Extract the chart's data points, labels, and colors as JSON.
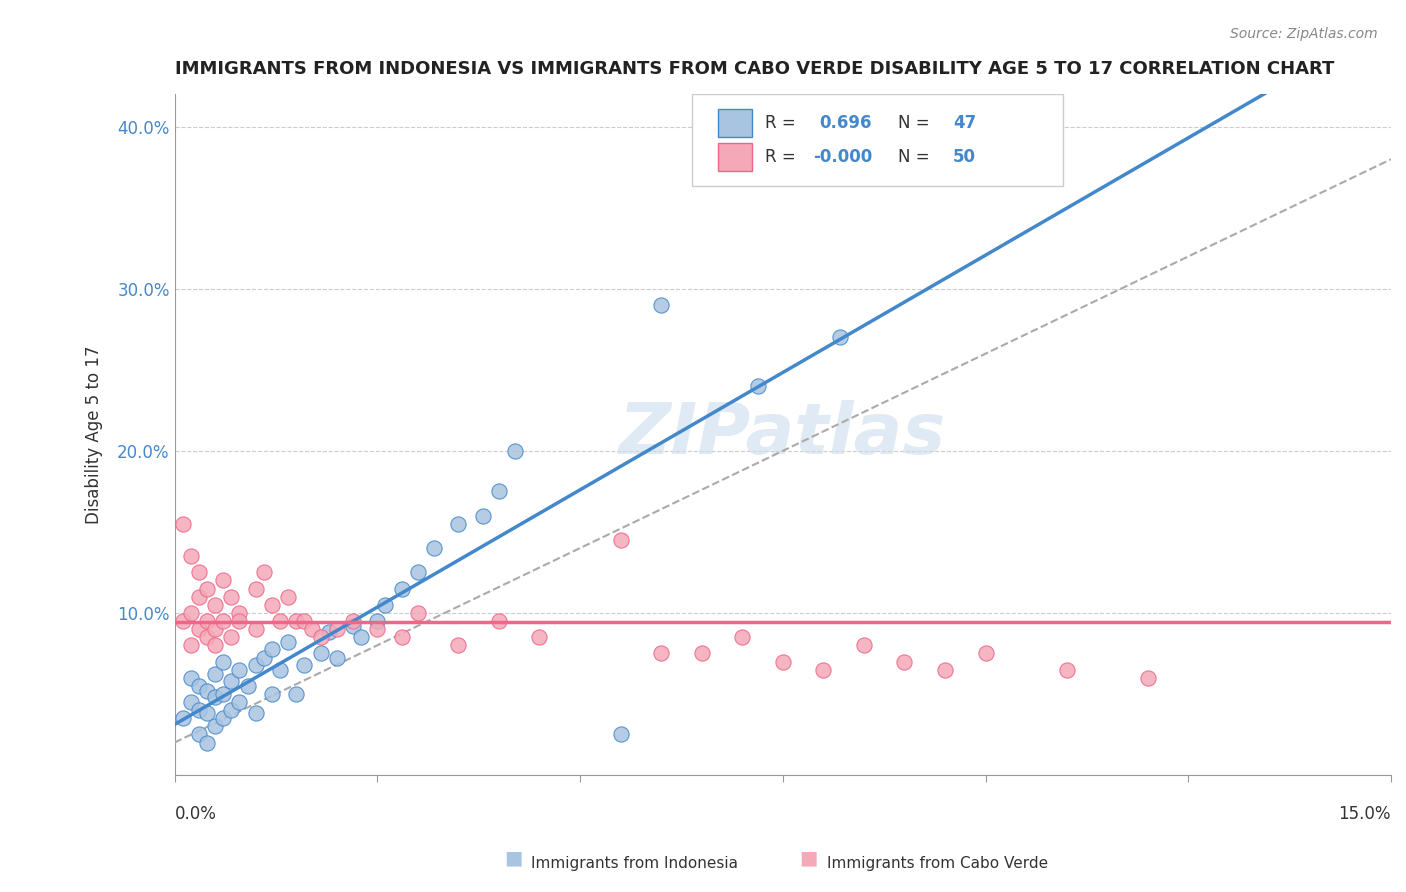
{
  "title": "IMMIGRANTS FROM INDONESIA VS IMMIGRANTS FROM CABO VERDE DISABILITY AGE 5 TO 17 CORRELATION CHART",
  "source": "Source: ZipAtlas.com",
  "ylabel": "Disability Age 5 to 17",
  "xlim": [
    0.0,
    0.15
  ],
  "ylim": [
    0.0,
    0.42
  ],
  "yticks": [
    0.0,
    0.1,
    0.2,
    0.3,
    0.4
  ],
  "ytick_labels": [
    "",
    "10.0%",
    "20.0%",
    "30.0%",
    "40.0%"
  ],
  "color_blue": "#a8c4e0",
  "color_pink": "#f4a8b8",
  "line_blue": "#4488cc",
  "line_pink": "#ee6688",
  "line_dashed": "#aaaaaa",
  "watermark": "ZIPatlas",
  "blue_x": [
    0.001,
    0.002,
    0.002,
    0.003,
    0.003,
    0.003,
    0.004,
    0.004,
    0.004,
    0.005,
    0.005,
    0.005,
    0.006,
    0.006,
    0.006,
    0.007,
    0.007,
    0.008,
    0.008,
    0.009,
    0.01,
    0.01,
    0.011,
    0.012,
    0.012,
    0.013,
    0.014,
    0.015,
    0.016,
    0.018,
    0.019,
    0.02,
    0.022,
    0.023,
    0.025,
    0.026,
    0.028,
    0.03,
    0.032,
    0.035,
    0.038,
    0.04,
    0.042,
    0.055,
    0.06,
    0.072,
    0.082
  ],
  "blue_y": [
    0.035,
    0.045,
    0.06,
    0.025,
    0.04,
    0.055,
    0.02,
    0.038,
    0.052,
    0.03,
    0.048,
    0.062,
    0.035,
    0.05,
    0.07,
    0.04,
    0.058,
    0.045,
    0.065,
    0.055,
    0.038,
    0.068,
    0.072,
    0.05,
    0.078,
    0.065,
    0.082,
    0.05,
    0.068,
    0.075,
    0.088,
    0.072,
    0.092,
    0.085,
    0.095,
    0.105,
    0.115,
    0.125,
    0.14,
    0.155,
    0.16,
    0.175,
    0.2,
    0.025,
    0.29,
    0.24,
    0.27
  ],
  "pink_x": [
    0.001,
    0.001,
    0.002,
    0.002,
    0.002,
    0.003,
    0.003,
    0.003,
    0.004,
    0.004,
    0.004,
    0.005,
    0.005,
    0.005,
    0.006,
    0.006,
    0.007,
    0.007,
    0.008,
    0.008,
    0.01,
    0.01,
    0.011,
    0.012,
    0.013,
    0.014,
    0.015,
    0.016,
    0.017,
    0.018,
    0.02,
    0.022,
    0.025,
    0.028,
    0.03,
    0.035,
    0.04,
    0.045,
    0.055,
    0.06,
    0.065,
    0.07,
    0.075,
    0.08,
    0.085,
    0.09,
    0.095,
    0.1,
    0.11,
    0.12
  ],
  "pink_y": [
    0.155,
    0.095,
    0.135,
    0.1,
    0.08,
    0.125,
    0.11,
    0.09,
    0.115,
    0.095,
    0.085,
    0.105,
    0.09,
    0.08,
    0.12,
    0.095,
    0.11,
    0.085,
    0.1,
    0.095,
    0.115,
    0.09,
    0.125,
    0.105,
    0.095,
    0.11,
    0.095,
    0.095,
    0.09,
    0.085,
    0.09,
    0.095,
    0.09,
    0.085,
    0.1,
    0.08,
    0.095,
    0.085,
    0.145,
    0.075,
    0.075,
    0.085,
    0.07,
    0.065,
    0.08,
    0.07,
    0.065,
    0.075,
    0.065,
    0.06
  ]
}
